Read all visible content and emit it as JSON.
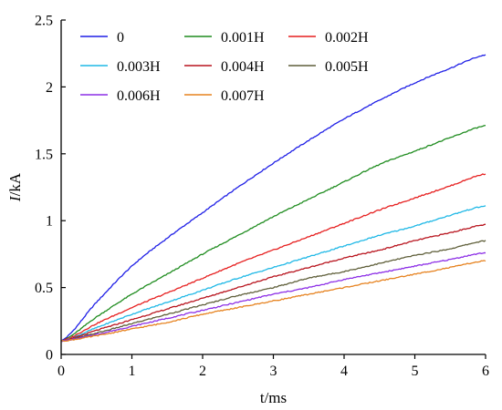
{
  "chart_data": {
    "type": "line",
    "xlabel": "t/ms",
    "ylabel_italic": "I",
    "ylabel_rest": "/kA",
    "xlim": [
      0,
      6
    ],
    "ylim": [
      0,
      2.5
    ],
    "xticks": [
      0,
      1,
      2,
      3,
      4,
      5,
      6
    ],
    "yticks": [
      0,
      0.5,
      1,
      1.5,
      2,
      2.5
    ],
    "xtick_labels": [
      "0",
      "1",
      "2",
      "3",
      "4",
      "5",
      "6"
    ],
    "ytick_labels": [
      "0",
      "0.5",
      "1",
      "1.5",
      "2",
      "2.5"
    ],
    "grid": false,
    "legend_position": "top-left",
    "x": [
      0,
      0.5,
      1,
      1.5,
      2,
      2.5,
      3,
      3.5,
      4,
      4.5,
      5,
      5.5,
      6
    ],
    "series": [
      {
        "name": "0",
        "color": "#1f1fe6",
        "values": [
          0.1,
          0.39,
          0.66,
          0.87,
          1.06,
          1.25,
          1.43,
          1.6,
          1.76,
          1.9,
          2.03,
          2.14,
          2.24
        ]
      },
      {
        "name": "0.001H",
        "color": "#1f8c1f",
        "values": [
          0.1,
          0.28,
          0.45,
          0.6,
          0.75,
          0.89,
          1.03,
          1.16,
          1.29,
          1.42,
          1.52,
          1.62,
          1.71
        ]
      },
      {
        "name": "0.002H",
        "color": "#e61f1f",
        "values": [
          0.1,
          0.23,
          0.35,
          0.46,
          0.57,
          0.68,
          0.78,
          0.88,
          0.98,
          1.08,
          1.17,
          1.26,
          1.35
        ]
      },
      {
        "name": "0.003H",
        "color": "#1fb8e6",
        "values": [
          0.1,
          0.2,
          0.3,
          0.39,
          0.48,
          0.57,
          0.65,
          0.73,
          0.81,
          0.89,
          0.96,
          1.04,
          1.11
        ]
      },
      {
        "name": "0.004H",
        "color": "#b8141e",
        "values": [
          0.1,
          0.18,
          0.26,
          0.34,
          0.42,
          0.5,
          0.58,
          0.65,
          0.72,
          0.78,
          0.85,
          0.91,
          0.97
        ]
      },
      {
        "name": "0.005H",
        "color": "#5f5f3a",
        "values": [
          0.1,
          0.16,
          0.23,
          0.3,
          0.37,
          0.44,
          0.5,
          0.57,
          0.62,
          0.68,
          0.74,
          0.79,
          0.85
        ]
      },
      {
        "name": "0.006H",
        "color": "#8c2ee6",
        "values": [
          0.1,
          0.15,
          0.21,
          0.27,
          0.33,
          0.39,
          0.45,
          0.5,
          0.56,
          0.61,
          0.66,
          0.71,
          0.76
        ]
      },
      {
        "name": "0.007H",
        "color": "#e6821f",
        "values": [
          0.1,
          0.14,
          0.19,
          0.24,
          0.3,
          0.35,
          0.4,
          0.45,
          0.5,
          0.55,
          0.6,
          0.65,
          0.7
        ]
      }
    ],
    "legend_rows": [
      [
        "0",
        "0.001H",
        "0.002H"
      ],
      [
        "0.003H",
        "0.004H",
        "0.005H"
      ],
      [
        "0.006H",
        "0.007H"
      ]
    ]
  }
}
